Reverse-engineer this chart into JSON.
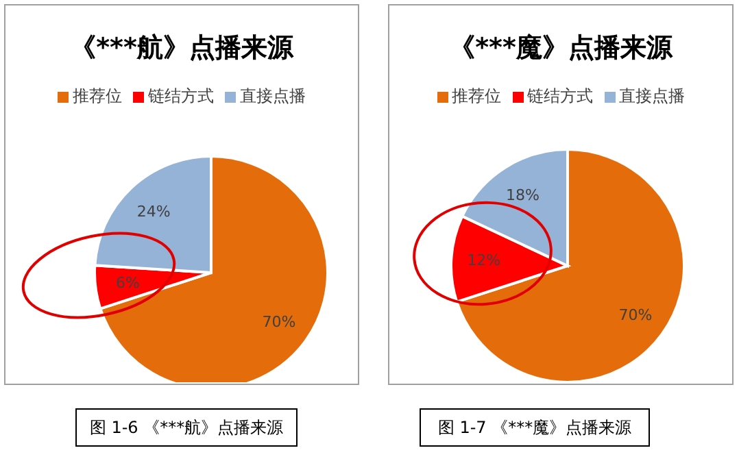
{
  "chart_data": [
    {
      "type": "pie",
      "title": "《***航》点播来源",
      "categories": [
        "推荐位",
        "链结方式",
        "直接点播"
      ],
      "values": [
        70,
        6,
        24
      ],
      "colors": [
        "#e46c0a",
        "#ff0000",
        "#95b3d7"
      ],
      "value_labels": [
        "70%",
        "6%",
        "24%"
      ],
      "legend": "top",
      "annotations": [
        "图 1-6 《***航》点播来源"
      ]
    },
    {
      "type": "pie",
      "title": "《***魔》点播来源",
      "categories": [
        "推荐位",
        "链结方式",
        "直接点播"
      ],
      "values": [
        70,
        12,
        18
      ],
      "colors": [
        "#e46c0a",
        "#ff0000",
        "#95b3d7"
      ],
      "value_labels": [
        "70%",
        "12%",
        "18%"
      ],
      "legend": "top",
      "annotations": [
        "图 1-7 《***魔》点播来源"
      ]
    }
  ]
}
